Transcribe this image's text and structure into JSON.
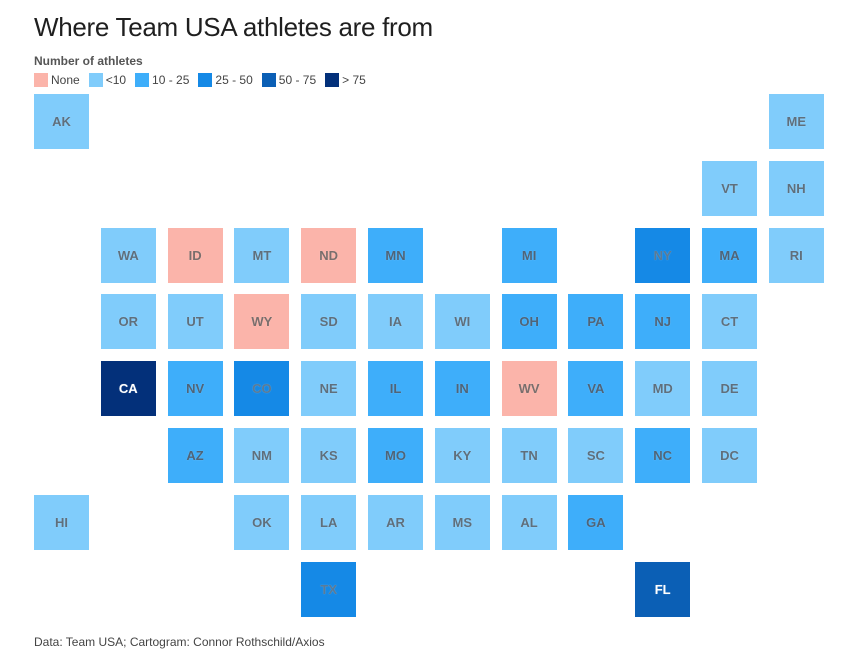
{
  "title": "Where Team USA athletes are from",
  "legend": {
    "title": "Number of athletes",
    "items": [
      {
        "label": "None",
        "color": "#fbb4aa"
      },
      {
        "label": "<10",
        "color": "#80ccfb"
      },
      {
        "label": "10 - 25",
        "color": "#3eaefa"
      },
      {
        "label": "25 - 50",
        "color": "#1589e6"
      },
      {
        "label": "50 - 75",
        "color": "#0b5fb5"
      },
      {
        "label": "> 75",
        "color": "#03307a"
      }
    ]
  },
  "source": "Data: Team USA; Cartogram: Connor Rothschild/Axios",
  "chart_data": {
    "type": "tile-grid-map",
    "title": "Where Team USA athletes are from",
    "legend_title": "Number of athletes",
    "bins": [
      "None",
      "<10",
      "10 - 25",
      "25 - 50",
      "50 - 75",
      "> 75"
    ],
    "states": [
      {
        "abbr": "AK",
        "col": 0,
        "row": 0,
        "bin": "<10"
      },
      {
        "abbr": "ME",
        "col": 11,
        "row": 0,
        "bin": "<10"
      },
      {
        "abbr": "VT",
        "col": 10,
        "row": 1,
        "bin": "<10"
      },
      {
        "abbr": "NH",
        "col": 11,
        "row": 1,
        "bin": "<10"
      },
      {
        "abbr": "WA",
        "col": 1,
        "row": 2,
        "bin": "<10"
      },
      {
        "abbr": "ID",
        "col": 2,
        "row": 2,
        "bin": "None"
      },
      {
        "abbr": "MT",
        "col": 3,
        "row": 2,
        "bin": "<10"
      },
      {
        "abbr": "ND",
        "col": 4,
        "row": 2,
        "bin": "None"
      },
      {
        "abbr": "MN",
        "col": 5,
        "row": 2,
        "bin": "10 - 25"
      },
      {
        "abbr": "MI",
        "col": 7,
        "row": 2,
        "bin": "10 - 25"
      },
      {
        "abbr": "NY",
        "col": 9,
        "row": 2,
        "bin": "25 - 50"
      },
      {
        "abbr": "MA",
        "col": 10,
        "row": 2,
        "bin": "10 - 25"
      },
      {
        "abbr": "RI",
        "col": 11,
        "row": 2,
        "bin": "<10"
      },
      {
        "abbr": "OR",
        "col": 1,
        "row": 3,
        "bin": "<10"
      },
      {
        "abbr": "UT",
        "col": 2,
        "row": 3,
        "bin": "<10"
      },
      {
        "abbr": "WY",
        "col": 3,
        "row": 3,
        "bin": "None"
      },
      {
        "abbr": "SD",
        "col": 4,
        "row": 3,
        "bin": "<10"
      },
      {
        "abbr": "IA",
        "col": 5,
        "row": 3,
        "bin": "<10"
      },
      {
        "abbr": "WI",
        "col": 6,
        "row": 3,
        "bin": "<10"
      },
      {
        "abbr": "OH",
        "col": 7,
        "row": 3,
        "bin": "10 - 25"
      },
      {
        "abbr": "PA",
        "col": 8,
        "row": 3,
        "bin": "10 - 25"
      },
      {
        "abbr": "NJ",
        "col": 9,
        "row": 3,
        "bin": "10 - 25"
      },
      {
        "abbr": "CT",
        "col": 10,
        "row": 3,
        "bin": "<10"
      },
      {
        "abbr": "CA",
        "col": 1,
        "row": 4,
        "bin": "> 75"
      },
      {
        "abbr": "NV",
        "col": 2,
        "row": 4,
        "bin": "10 - 25"
      },
      {
        "abbr": "CO",
        "col": 3,
        "row": 4,
        "bin": "25 - 50"
      },
      {
        "abbr": "NE",
        "col": 4,
        "row": 4,
        "bin": "<10"
      },
      {
        "abbr": "IL",
        "col": 5,
        "row": 4,
        "bin": "10 - 25"
      },
      {
        "abbr": "IN",
        "col": 6,
        "row": 4,
        "bin": "10 - 25"
      },
      {
        "abbr": "WV",
        "col": 7,
        "row": 4,
        "bin": "None"
      },
      {
        "abbr": "VA",
        "col": 8,
        "row": 4,
        "bin": "10 - 25"
      },
      {
        "abbr": "MD",
        "col": 9,
        "row": 4,
        "bin": "<10"
      },
      {
        "abbr": "DE",
        "col": 10,
        "row": 4,
        "bin": "<10"
      },
      {
        "abbr": "AZ",
        "col": 2,
        "row": 5,
        "bin": "10 - 25"
      },
      {
        "abbr": "NM",
        "col": 3,
        "row": 5,
        "bin": "<10"
      },
      {
        "abbr": "KS",
        "col": 4,
        "row": 5,
        "bin": "<10"
      },
      {
        "abbr": "MO",
        "col": 5,
        "row": 5,
        "bin": "10 - 25"
      },
      {
        "abbr": "KY",
        "col": 6,
        "row": 5,
        "bin": "<10"
      },
      {
        "abbr": "TN",
        "col": 7,
        "row": 5,
        "bin": "<10"
      },
      {
        "abbr": "SC",
        "col": 8,
        "row": 5,
        "bin": "<10"
      },
      {
        "abbr": "NC",
        "col": 9,
        "row": 5,
        "bin": "10 - 25"
      },
      {
        "abbr": "DC",
        "col": 10,
        "row": 5,
        "bin": "<10"
      },
      {
        "abbr": "HI",
        "col": 0,
        "row": 6,
        "bin": "<10"
      },
      {
        "abbr": "OK",
        "col": 3,
        "row": 6,
        "bin": "<10"
      },
      {
        "abbr": "LA",
        "col": 4,
        "row": 6,
        "bin": "<10"
      },
      {
        "abbr": "AR",
        "col": 5,
        "row": 6,
        "bin": "<10"
      },
      {
        "abbr": "MS",
        "col": 6,
        "row": 6,
        "bin": "<10"
      },
      {
        "abbr": "AL",
        "col": 7,
        "row": 6,
        "bin": "<10"
      },
      {
        "abbr": "GA",
        "col": 8,
        "row": 6,
        "bin": "10 - 25"
      },
      {
        "abbr": "TX",
        "col": 4,
        "row": 7,
        "bin": "25 - 50"
      },
      {
        "abbr": "FL",
        "col": 9,
        "row": 7,
        "bin": "50 - 75"
      }
    ]
  }
}
